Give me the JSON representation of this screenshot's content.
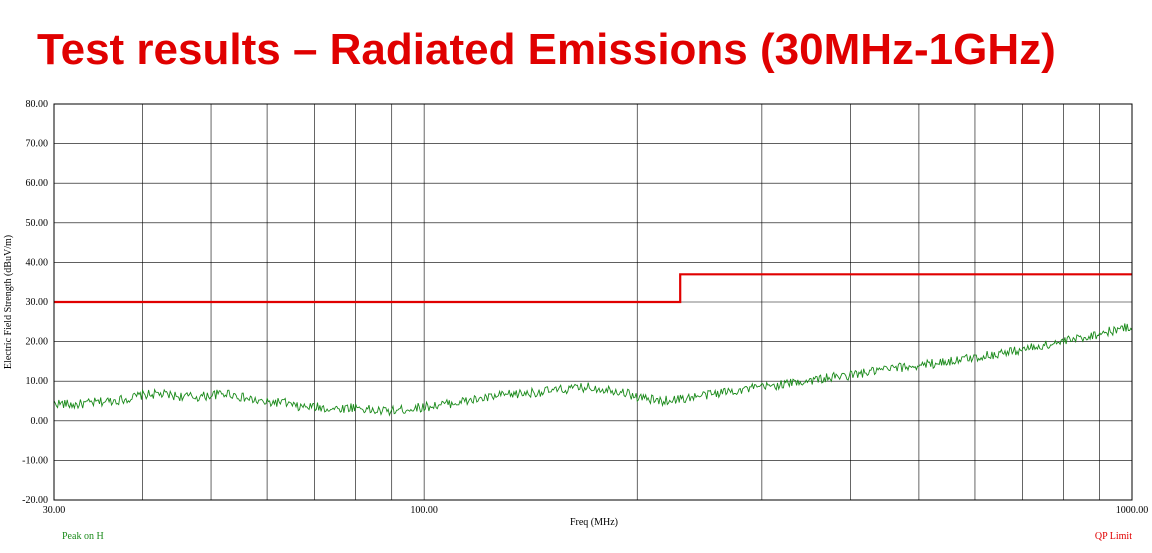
{
  "slide": {
    "title": "Test results – Radiated Emissions (30MHz-1GHz)"
  },
  "colors": {
    "title": "#e00000",
    "limit": "#e00000",
    "peak": "#1a8a1a",
    "grid": "#000000"
  },
  "chart_data": {
    "type": "line",
    "xscale": "log",
    "xlim": [
      30,
      1000
    ],
    "ylim": [
      -20,
      80
    ],
    "xlabel": "Freq (MHz)",
    "ylabel": "Electric Field Strength (dBuV/m)",
    "x_ticks": [
      30,
      100,
      1000
    ],
    "x_tick_labels": [
      "30.00",
      "100.00",
      "1000.00"
    ],
    "y_ticks": [
      -20,
      -10,
      0,
      10,
      20,
      30,
      40,
      50,
      60,
      70,
      80
    ],
    "y_tick_labels": [
      "-20.00",
      "-10.00",
      "0.00",
      "10.00",
      "20.00",
      "30.00",
      "40.00",
      "50.00",
      "60.00",
      "70.00",
      "80.00"
    ],
    "grid_x": [
      40,
      50,
      60,
      70,
      80,
      90,
      100,
      200,
      300,
      400,
      500,
      600,
      700,
      800,
      900
    ],
    "grid_y": true,
    "series": [
      {
        "name": "Peak on H",
        "x": [
          30,
          32,
          35,
          38,
          40,
          42,
          45,
          48,
          50,
          53,
          55,
          58,
          60,
          63,
          66,
          70,
          75,
          80,
          85,
          90,
          95,
          100,
          110,
          120,
          130,
          140,
          150,
          160,
          170,
          180,
          190,
          200,
          215,
          230,
          250,
          270,
          300,
          330,
          360,
          400,
          450,
          500,
          550,
          600,
          650,
          700,
          750,
          800,
          850,
          900,
          950,
          1000
        ],
        "y": [
          4.5,
          4.0,
          4.8,
          5.5,
          6.5,
          6.8,
          6.2,
          6.0,
          6.5,
          7.0,
          6.0,
          5.0,
          4.5,
          4.8,
          3.5,
          3.5,
          3.0,
          3.5,
          2.5,
          2.5,
          3.0,
          3.5,
          4.5,
          5.5,
          6.5,
          7.0,
          7.5,
          8.0,
          8.5,
          8.0,
          7.5,
          6.0,
          5.0,
          5.5,
          6.5,
          7.5,
          8.5,
          9.5,
          10.5,
          11.5,
          13.0,
          14.0,
          15.0,
          16.0,
          17.0,
          18.0,
          19.0,
          20.0,
          21.0,
          22.0,
          23.0,
          23.8
        ]
      },
      {
        "name": "QP Limit",
        "x": [
          30,
          230,
          230,
          1000
        ],
        "y": [
          30,
          30,
          37,
          37
        ]
      }
    ]
  }
}
